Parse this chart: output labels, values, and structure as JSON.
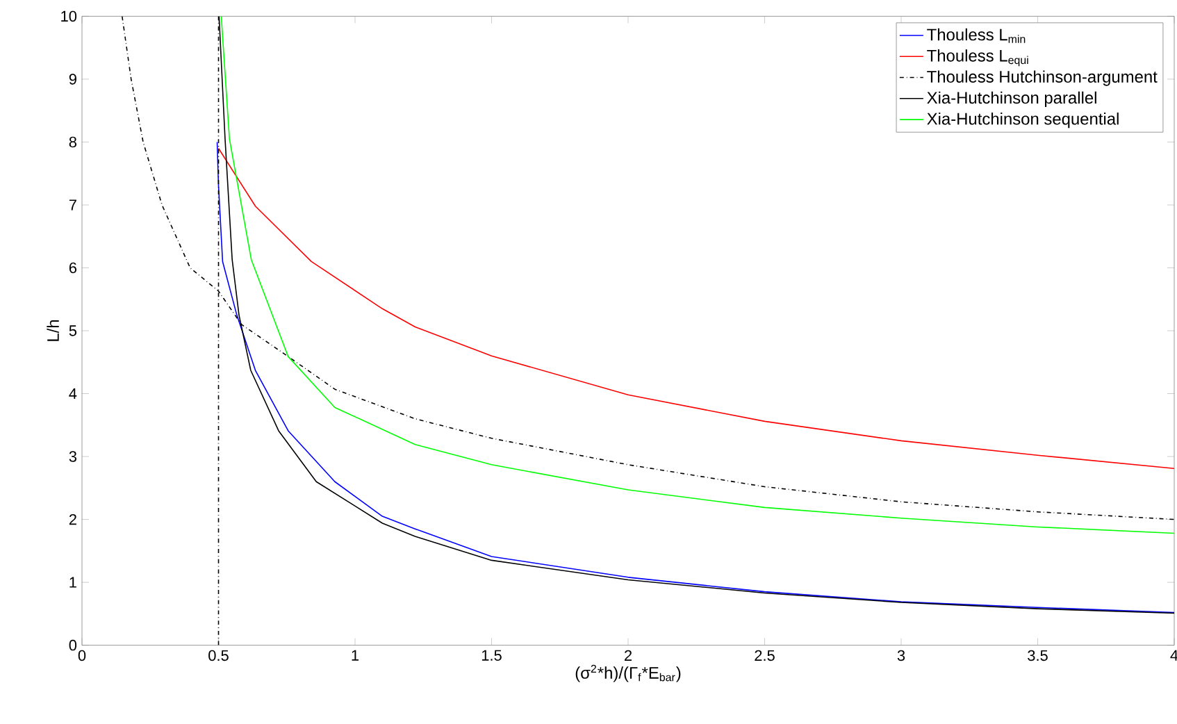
{
  "chart_data": {
    "type": "line",
    "xlabel": "(σ$^{2}$*h)/(Γ$_{f}$*E$_{bar}$)",
    "ylabel": "L/h",
    "xlim": [
      0,
      4
    ],
    "ylim": [
      0,
      10
    ],
    "xticks": [
      0,
      {
        "value": 0.5,
        "label": "0.5"
      },
      1,
      {
        "value": 1.5,
        "label": "1.5"
      },
      2,
      {
        "value": 2.5,
        "label": "2.5"
      },
      3,
      {
        "value": 3.5,
        "label": "3.5"
      },
      4
    ],
    "yticks": [
      0,
      1,
      2,
      3,
      4,
      5,
      6,
      7,
      8,
      9,
      10
    ],
    "grid": false,
    "legend": "top right",
    "ref_lines": [
      {
        "axis": "x",
        "value": 0.5,
        "color": "#000000",
        "line_style": "dashdot"
      }
    ],
    "series": [
      {
        "name": "Thouless L$_{min}$",
        "color": "#0000ff",
        "line_style": "solid",
        "x": [
          0.495,
          0.5,
          0.515,
          0.567,
          0.635,
          0.755,
          0.926,
          1.1,
          1.22,
          1.5,
          2,
          2.5,
          3,
          3.5,
          4
        ],
        "values": [
          8.0,
          7.3,
          6.1,
          5.25,
          4.37,
          3.41,
          2.6,
          2.05,
          1.85,
          1.41,
          1.08,
          0.85,
          0.69,
          0.6,
          0.52
        ]
      },
      {
        "name": "Thouless L$_{equi}$",
        "color": "#ff0000",
        "line_style": "solid",
        "x": [
          0.5,
          0.635,
          0.84,
          1.1,
          1.22,
          1.5,
          2,
          2.5,
          3,
          3.5,
          4
        ],
        "values": [
          7.9,
          6.98,
          6.1,
          5.35,
          5.06,
          4.6,
          3.98,
          3.56,
          3.25,
          3.02,
          2.81
        ]
      },
      {
        "name": "Thouless Hutchinson-argument",
        "color": "#000000",
        "line_style": "dashdot",
        "x": [
          0.147,
          0.18,
          0.224,
          0.293,
          0.396,
          0.5,
          0.584,
          0.755,
          0.926,
          1.22,
          1.5,
          2,
          2.5,
          3,
          3.5,
          4
        ],
        "values": [
          10,
          9.0,
          8.0,
          7.0,
          6.0,
          5.63,
          5.1,
          4.59,
          4.07,
          3.6,
          3.29,
          2.87,
          2.52,
          2.28,
          2.12,
          2.0
        ]
      },
      {
        "name": "Xia-Hutchinson parallel",
        "color": "#000000",
        "line_style": "solid",
        "x": [
          0.502,
          0.524,
          0.55,
          0.575,
          0.618,
          0.72,
          0.858,
          1.1,
          1.22,
          1.5,
          2,
          2.5,
          3,
          3.5,
          4
        ],
        "values": [
          10,
          8.05,
          6.13,
          5.25,
          4.37,
          3.41,
          2.6,
          1.94,
          1.73,
          1.35,
          1.04,
          0.83,
          0.68,
          0.58,
          0.51
        ]
      },
      {
        "name": "Xia-Hutchinson sequential",
        "color": "#00ff00",
        "line_style": "solid",
        "x": [
          0.51,
          0.54,
          0.62,
          0.755,
          0.926,
          1.22,
          1.5,
          2,
          2.5,
          3,
          3.5,
          4
        ],
        "values": [
          10,
          8.05,
          6.13,
          4.59,
          3.78,
          3.19,
          2.87,
          2.47,
          2.19,
          2.02,
          1.88,
          1.78
        ]
      }
    ]
  }
}
